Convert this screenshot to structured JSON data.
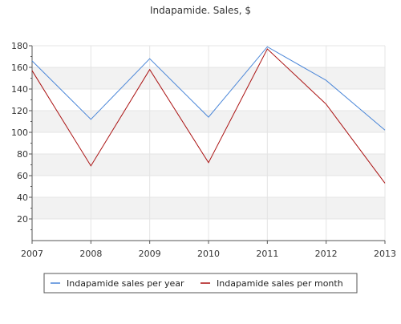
{
  "chart_data": {
    "type": "line",
    "title": "Indapamide. Sales, $",
    "x": [
      "2007",
      "2008",
      "2009",
      "2010",
      "2011",
      "2012",
      "2013"
    ],
    "ylim": [
      0,
      180
    ],
    "y_ticks": [
      "20",
      "40",
      "60",
      "80",
      "100",
      "120",
      "140",
      "160",
      "180"
    ],
    "grid": {
      "horizontal_bands": true,
      "vertical_lines": true
    },
    "legend_position": "bottom",
    "series": [
      {
        "name": "Indapamide sales per year",
        "color": "#4a86d8",
        "values": [
          166,
          112,
          168,
          114,
          179,
          148,
          102
        ]
      },
      {
        "name": "Indapamide sales per month",
        "color": "#aa1111",
        "values": [
          157,
          69,
          158,
          72,
          177,
          126,
          53
        ]
      }
    ]
  }
}
